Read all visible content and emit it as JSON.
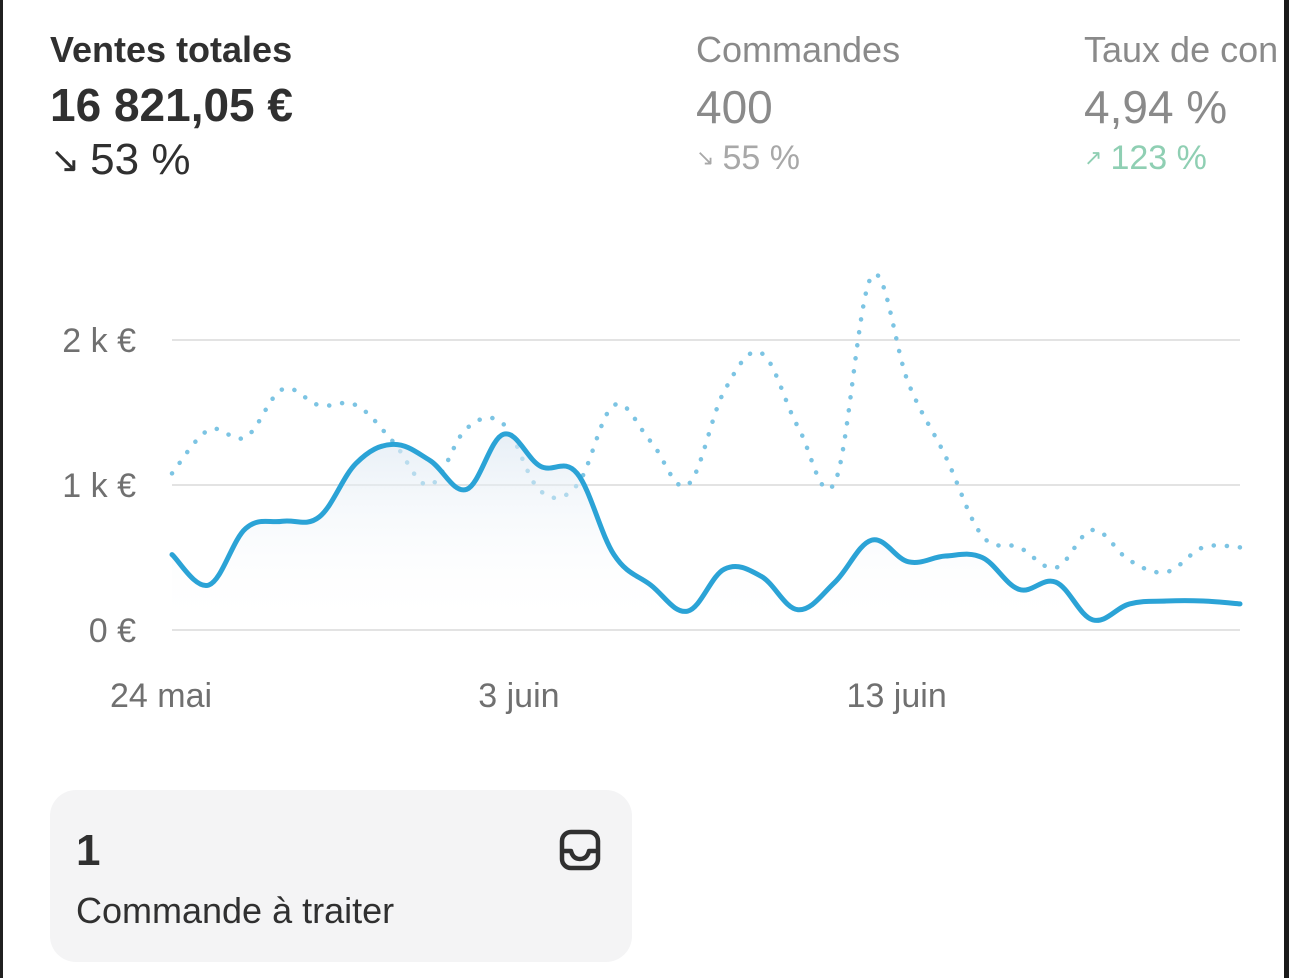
{
  "metrics": {
    "sales": {
      "label": "Ventes totales",
      "value": "16 821,05 €",
      "delta": "53 %",
      "direction": "down",
      "arrow_icon": "arrow-down-right-icon"
    },
    "orders": {
      "label": "Commandes",
      "value": "400",
      "delta": "55 %",
      "direction": "down",
      "arrow_icon": "arrow-down-right-icon"
    },
    "conversion": {
      "label": "Taux de con",
      "value": "4,94 %",
      "delta": "123 %",
      "direction": "up",
      "arrow_icon": "arrow-up-right-icon"
    }
  },
  "chart_data": {
    "type": "line",
    "y_ticks": [
      {
        "value": 0,
        "label": "0 €"
      },
      {
        "value": 1000,
        "label": "1 k €"
      },
      {
        "value": 2000,
        "label": "2 k €"
      }
    ],
    "ylim": [
      0,
      2500
    ],
    "x_ticks": [
      {
        "day": 0,
        "label": "24 mai"
      },
      {
        "day": 10,
        "label": "3 juin"
      },
      {
        "day": 20,
        "label": "13 juin"
      }
    ],
    "grid": true,
    "series": [
      {
        "style": "solid",
        "color": "#2ba3d6",
        "fill": true,
        "x": [
          0,
          1,
          2,
          3,
          4,
          5,
          6,
          7,
          8,
          9,
          10,
          11,
          12,
          13,
          14,
          15,
          16,
          17,
          18,
          19,
          20,
          21,
          22,
          23,
          24,
          25,
          26,
          27,
          28,
          29
        ],
        "values": [
          520,
          310,
          700,
          750,
          780,
          1150,
          1280,
          1170,
          970,
          1350,
          1130,
          1080,
          520,
          310,
          130,
          420,
          370,
          140,
          330,
          620,
          470,
          510,
          500,
          280,
          330,
          70,
          180,
          200,
          200,
          180
        ]
      },
      {
        "style": "dotted",
        "color": "#7cc4e3",
        "fill": false,
        "x": [
          0,
          1,
          2,
          3,
          4,
          5,
          6,
          7,
          8,
          9,
          10,
          11,
          12,
          13,
          14,
          15,
          16,
          17,
          18,
          19,
          20,
          21,
          22,
          23,
          24,
          25,
          26,
          27,
          28,
          29
        ],
        "values": [
          1080,
          1380,
          1330,
          1660,
          1550,
          1550,
          1300,
          1000,
          1390,
          1420,
          960,
          1000,
          1550,
          1300,
          1000,
          1650,
          1910,
          1400,
          1020,
          2440,
          1700,
          1200,
          650,
          570,
          430,
          690,
          480,
          400,
          570,
          570
        ]
      }
    ]
  },
  "card": {
    "count": "1",
    "label": "Commande à traiter",
    "icon": "inbox-icon"
  }
}
